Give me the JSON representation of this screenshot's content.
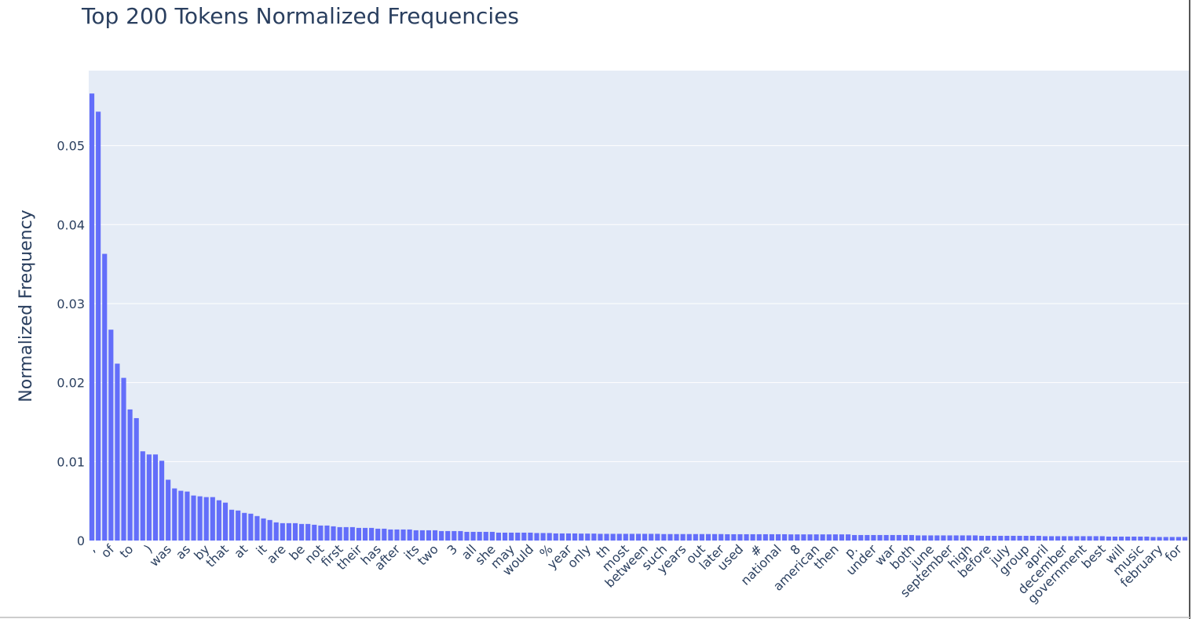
{
  "chart_data": {
    "type": "bar",
    "title": "Top 200 Tokens Normalized Frequencies",
    "y_label": "Normalized Frequency",
    "color": "#636efa",
    "grid": true,
    "ylim": [
      0,
      0.0595
    ],
    "yticks": [
      0,
      0.01,
      0.02,
      0.03,
      0.04,
      0.05
    ],
    "categories": [
      ",",
      null,
      null,
      "of",
      null,
      null,
      "to",
      null,
      null,
      ")",
      null,
      null,
      "was",
      null,
      null,
      "as",
      null,
      null,
      "by",
      null,
      null,
      "that",
      null,
      null,
      "at",
      null,
      null,
      "it",
      null,
      null,
      "are",
      null,
      null,
      "be",
      null,
      null,
      "not",
      null,
      null,
      "first",
      null,
      null,
      "their",
      null,
      null,
      "has",
      null,
      null,
      "after",
      null,
      null,
      "its",
      null,
      null,
      "two",
      null,
      null,
      "3",
      null,
      null,
      "all",
      null,
      null,
      "she",
      null,
      null,
      "may",
      null,
      null,
      "would",
      null,
      null,
      "%",
      null,
      null,
      "year",
      null,
      null,
      "only",
      null,
      null,
      "th",
      null,
      null,
      "most",
      null,
      null,
      "between",
      null,
      null,
      "such",
      null,
      null,
      "years",
      null,
      null,
      "out",
      null,
      null,
      "later",
      null,
      null,
      "used",
      null,
      null,
      "#",
      null,
      null,
      "national",
      null,
      null,
      "8",
      null,
      null,
      "american",
      null,
      null,
      "then",
      null,
      null,
      "p.",
      null,
      null,
      "under",
      null,
      null,
      "war",
      null,
      null,
      "both",
      null,
      null,
      "june",
      null,
      null,
      "september",
      null,
      null,
      "high",
      null,
      null,
      "before",
      null,
      null,
      "july",
      null,
      null,
      "group",
      null,
      null,
      "april",
      null,
      null,
      "december",
      null,
      null,
      "government",
      null,
      null,
      "best",
      null,
      null,
      "will",
      null,
      null,
      "music",
      null,
      null,
      "february",
      null,
      null,
      "for",
      null
    ],
    "values": [
      0.0566,
      0.0543,
      0.0363,
      0.0267,
      0.0224,
      0.0206,
      0.0166,
      0.0155,
      0.0113,
      0.0109,
      0.0109,
      0.0101,
      0.0077,
      0.0066,
      0.0063,
      0.0062,
      0.0057,
      0.0056,
      0.0055,
      0.0055,
      0.0051,
      0.0048,
      0.0039,
      0.0038,
      0.0035,
      0.0034,
      0.0031,
      0.0028,
      0.0026,
      0.0023,
      0.0022,
      0.0022,
      0.0022,
      0.0021,
      0.0021,
      0.002,
      0.0019,
      0.0019,
      0.0018,
      0.0017,
      0.0017,
      0.0017,
      0.0016,
      0.0016,
      0.0016,
      0.0015,
      0.0015,
      0.0014,
      0.0014,
      0.0014,
      0.0014,
      0.0013,
      0.0013,
      0.0013,
      0.0013,
      0.0012,
      0.0012,
      0.0012,
      0.0012,
      0.0011,
      0.0011,
      0.0011,
      0.0011,
      0.0011,
      0.001,
      0.001,
      0.001,
      0.001,
      0.001,
      0.001,
      0.00095,
      0.00095,
      0.00095,
      0.0009,
      0.0009,
      0.0009,
      0.0009,
      0.00088,
      0.00088,
      0.00088,
      0.00085,
      0.00085,
      0.00085,
      0.00085,
      0.00085,
      0.00085,
      0.00085,
      0.00085,
      0.00085,
      0.00085,
      0.00082,
      0.00082,
      0.00082,
      0.00082,
      0.00082,
      0.00082,
      0.00082,
      0.00082,
      0.00082,
      0.00082,
      0.0008,
      0.0008,
      0.0008,
      0.0008,
      0.0008,
      0.0008,
      0.0008,
      0.0008,
      0.0008,
      0.0008,
      0.00078,
      0.00078,
      0.00078,
      0.00078,
      0.00078,
      0.00078,
      0.00078,
      0.00078,
      0.00078,
      0.00078,
      0.0007,
      0.0007,
      0.0007,
      0.0007,
      0.0007,
      0.0007,
      0.0007,
      0.0007,
      0.0007,
      0.0007,
      0.00065,
      0.00065,
      0.00065,
      0.00065,
      0.00065,
      0.00065,
      0.00065,
      0.00065,
      0.00065,
      0.00065,
      0.0006,
      0.0006,
      0.0006,
      0.0006,
      0.0006,
      0.0006,
      0.0006,
      0.0006,
      0.0006,
      0.0006,
      0.00055,
      0.00055,
      0.00055,
      0.00055,
      0.00055,
      0.00055,
      0.00055,
      0.00055,
      0.00055,
      0.00055,
      0.0005,
      0.0005,
      0.0005,
      0.0005,
      0.0005,
      0.0005,
      0.0005,
      0.00045,
      0.00045,
      0.00045,
      0.00045,
      0.00045,
      0.00045
    ]
  }
}
